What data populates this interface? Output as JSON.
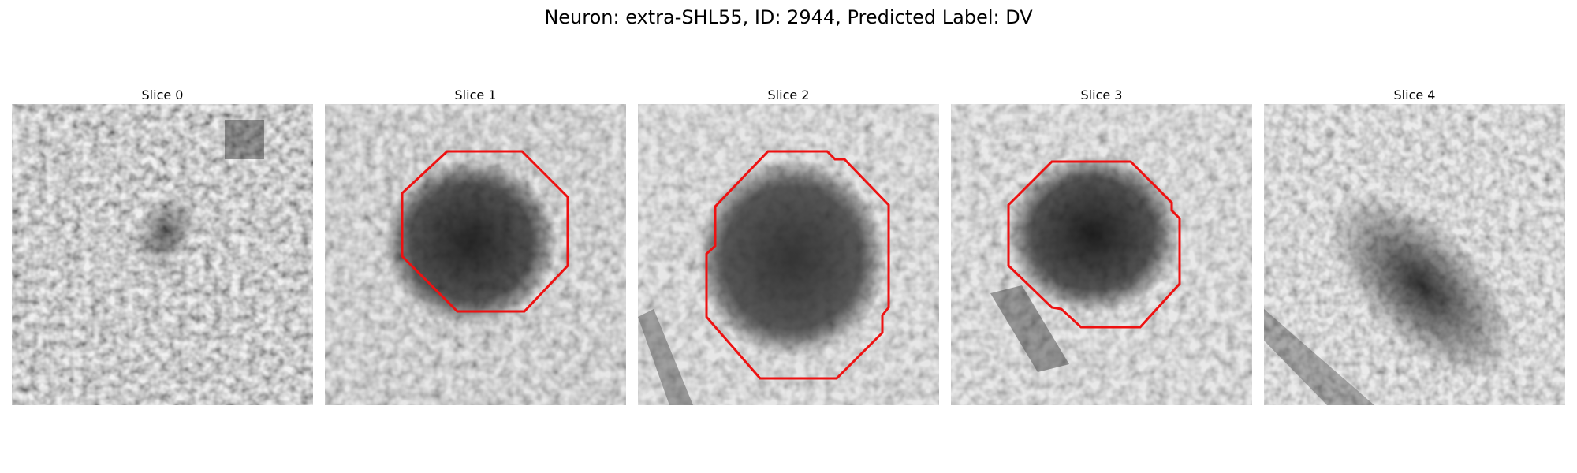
{
  "figure": {
    "title": "Neuron: extra-SHL55, ID: 2944, Predicted Label: DV"
  },
  "panels": [
    {
      "title": "Slice 0",
      "has_contour": false
    },
    {
      "title": "Slice 1",
      "has_contour": true
    },
    {
      "title": "Slice 2",
      "has_contour": true
    },
    {
      "title": "Slice 3",
      "has_contour": true
    },
    {
      "title": "Slice 4",
      "has_contour": false
    }
  ],
  "colors": {
    "contour": "#ee1111",
    "background": "#ffffff"
  }
}
